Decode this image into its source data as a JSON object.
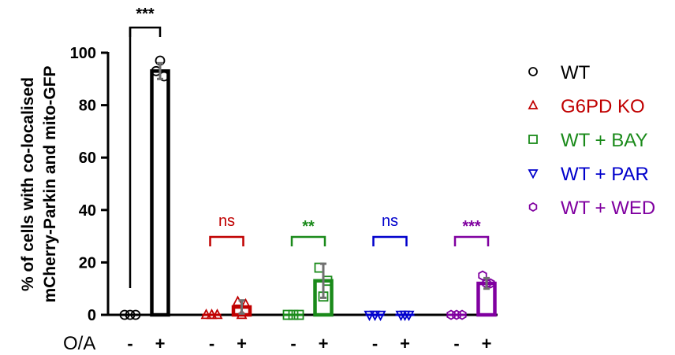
{
  "chart_data": {
    "type": "bar",
    "ylabel": [
      "% of cells with co-localised",
      "mCherry-Parkin and mito-GFP"
    ],
    "ylim": [
      0,
      100
    ],
    "yticks": [
      0,
      20,
      40,
      60,
      80,
      100
    ],
    "xlabel": "O/A",
    "treatment_labels": [
      "-",
      "+"
    ],
    "groups": [
      {
        "name": "WT",
        "color": "#000000",
        "marker": "circle",
        "values": [
          0,
          93
        ],
        "errors": [
          0,
          3
        ],
        "points": [
          [
            0,
            0,
            0
          ],
          [
            93,
            91,
            97
          ]
        ],
        "significance": "***"
      },
      {
        "name": "G6PD KO",
        "color": "#c00000",
        "marker": "triangle-up",
        "values": [
          0,
          3
        ],
        "errors": [
          0,
          2.5
        ],
        "points": [
          [
            0,
            0,
            0
          ],
          [
            5,
            4,
            0
          ]
        ],
        "significance": "ns"
      },
      {
        "name": "WT + BAY",
        "color": "#1a8a1a",
        "marker": "square",
        "values": [
          0,
          13
        ],
        "errors": [
          0,
          6.5
        ],
        "points": [
          [
            0,
            0,
            0
          ],
          [
            18,
            13,
            7
          ]
        ],
        "significance": "**"
      },
      {
        "name": "WT + PAR",
        "color": "#0000cc",
        "marker": "triangle-down",
        "values": [
          0,
          0
        ],
        "errors": [
          0,
          0
        ],
        "points": [
          [
            0,
            0,
            0
          ],
          [
            0,
            0,
            0
          ]
        ],
        "significance": "ns"
      },
      {
        "name": "WT + WED",
        "color": "#8000a0",
        "marker": "hexagon",
        "values": [
          0,
          12
        ],
        "errors": [
          0,
          2
        ],
        "points": [
          [
            0,
            0,
            0
          ],
          [
            15,
            12,
            12
          ]
        ],
        "significance": "***"
      }
    ],
    "legend_position": "right"
  }
}
